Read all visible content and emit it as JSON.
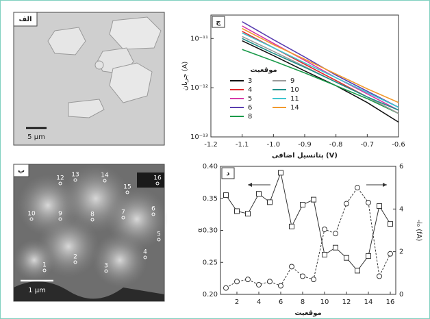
{
  "images": [
    {
      "panel_label": "الف",
      "scale_label": "5 µm"
    },
    {
      "panel_label": "ب",
      "scale_label": "1 µm",
      "point_labels": [
        "1",
        "2",
        "3",
        "4",
        "5",
        "6",
        "7",
        "8",
        "9",
        "10",
        "12",
        "13",
        "14",
        "15",
        "16"
      ]
    }
  ],
  "chart_data": [
    {
      "type": "line",
      "panel_label": "ج",
      "x_label": "پتانسیل اضافی (V)",
      "y_label": "جریان (A)",
      "legend_title": "موقعیت",
      "log_y": true,
      "xlim": [
        -1.2,
        -0.6
      ],
      "ylim": [
        1e-13,
        3e-11
      ],
      "xticks": [
        -1.2,
        -1.1,
        {
          "value": -1,
          "label": "-1.0"
        },
        -0.9,
        -0.8,
        -0.7,
        -0.6
      ],
      "yticks": [
        {
          "value": 1e-13,
          "label": "10⁻¹³"
        },
        {
          "value": 1e-12,
          "label": "10⁻¹²"
        },
        {
          "value": 1e-11,
          "label": "10⁻¹¹"
        }
      ],
      "x": [
        -1.1,
        -1.0,
        -0.9,
        -0.8,
        -0.7,
        -0.6
      ],
      "series": [
        {
          "name": "3",
          "color": "#111111",
          "values": [
            9e-12,
            4.5e-12,
            2.2e-12,
            1.1e-12,
            5e-13,
            2e-13
          ]
        },
        {
          "name": "4",
          "color": "#e0282c",
          "values": [
            1.4e-11,
            6.5e-12,
            3e-12,
            1.4e-12,
            6.5e-13,
            3e-13
          ]
        },
        {
          "name": "5",
          "color": "#d63aa8",
          "values": [
            1.8e-11,
            8e-12,
            3.6e-12,
            1.6e-12,
            7.5e-13,
            3.5e-13
          ]
        },
        {
          "name": "6",
          "color": "#5a3fb0",
          "values": [
            2.2e-11,
            9.5e-12,
            4.2e-12,
            1.8e-12,
            8.5e-13,
            4e-13
          ]
        },
        {
          "name": "8",
          "color": "#1a9a4a",
          "values": [
            6e-12,
            3.5e-12,
            2e-12,
            1.1e-12,
            6e-13,
            3e-13
          ]
        },
        {
          "name": "9",
          "color": "#9a9a9a",
          "values": [
            1.1e-11,
            5.5e-12,
            2.7e-12,
            1.3e-12,
            6.5e-13,
            3e-13
          ]
        },
        {
          "name": "10",
          "color": "#1f8f8a",
          "values": [
            1e-11,
            5e-12,
            2.6e-12,
            1.3e-12,
            6.5e-13,
            3.5e-13
          ]
        },
        {
          "name": "11",
          "color": "#3fc6d0",
          "values": [
            1.3e-11,
            6.5e-12,
            3.2e-12,
            1.6e-12,
            8e-13,
            4e-13
          ]
        },
        {
          "name": "14",
          "color": "#f29a2e",
          "values": [
            1.6e-11,
            7.5e-12,
            3.8e-12,
            1.9e-12,
            9.5e-13,
            5e-13
          ]
        }
      ]
    },
    {
      "type": "line",
      "panel_label": "د",
      "x_label": "موقعیت",
      "y_label": "α",
      "y2_label": "-i₀ (fA)",
      "xlim": [
        0.5,
        16.5
      ],
      "xticks": [
        2,
        4,
        6,
        8,
        10,
        12,
        14,
        16
      ],
      "ylim": [
        0.2,
        0.4
      ],
      "yticks": [
        {
          "value": 0.2,
          "label": "0.20"
        },
        0.25,
        {
          "value": 0.3,
          "label": "0.30"
        },
        0.35,
        {
          "value": 0.4,
          "label": "0.40"
        }
      ],
      "y2lim": [
        0,
        6
      ],
      "y2ticks": [
        0,
        2,
        4,
        6
      ],
      "x": [
        1,
        2,
        3,
        4,
        5,
        6,
        7,
        8,
        9,
        10,
        11,
        12,
        13,
        14,
        15,
        16
      ],
      "series": [
        {
          "color": "#333333",
          "marker": "square",
          "line_style": "solid",
          "values": [
            0.355,
            0.33,
            0.326,
            0.357,
            0.344,
            0.39,
            0.306,
            0.34,
            0.348,
            0.262,
            0.273,
            0.257,
            0.237,
            0.26,
            0.338,
            0.31
          ]
        },
        {
          "color": "#333333",
          "marker": "circle",
          "line_style": "dashed",
          "axis": "y2",
          "values": [
            0.3,
            0.6,
            0.7,
            0.45,
            0.6,
            0.4,
            1.3,
            0.85,
            0.7,
            3.05,
            2.85,
            4.25,
            5.0,
            4.3,
            0.85,
            1.9
          ]
        }
      ]
    }
  ]
}
